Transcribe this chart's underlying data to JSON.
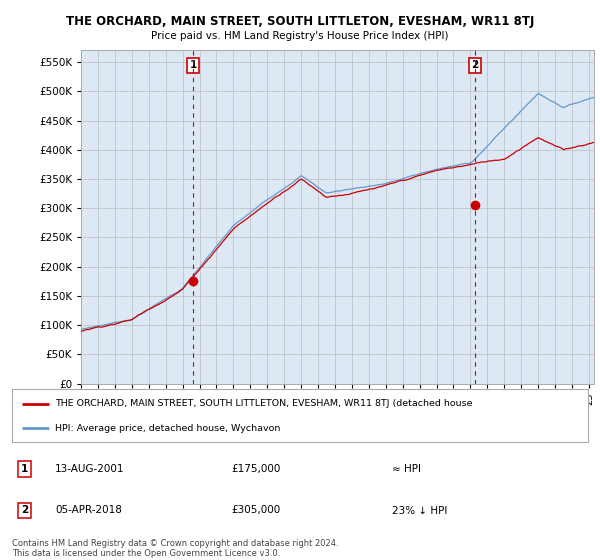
{
  "title": "THE ORCHARD, MAIN STREET, SOUTH LITTLETON, EVESHAM, WR11 8TJ",
  "subtitle": "Price paid vs. HM Land Registry's House Price Index (HPI)",
  "ylabel_ticks": [
    "£0",
    "£50K",
    "£100K",
    "£150K",
    "£200K",
    "£250K",
    "£300K",
    "£350K",
    "£400K",
    "£450K",
    "£500K",
    "£550K"
  ],
  "ytick_vals": [
    0,
    50000,
    100000,
    150000,
    200000,
    250000,
    300000,
    350000,
    400000,
    450000,
    500000,
    550000
  ],
  "ylim": [
    0,
    570000
  ],
  "xlim_start": 1995.0,
  "xlim_end": 2025.3,
  "hpi_color": "#6699CC",
  "price_color": "#CC0000",
  "plot_bg_color": "#dce9f5",
  "marker1_x": 2001.617,
  "marker1_y": 175000,
  "marker2_x": 2018.26,
  "marker2_y": 305000,
  "marker1_label": "1",
  "marker2_label": "2",
  "legend_line1": "THE ORCHARD, MAIN STREET, SOUTH LITTLETON, EVESHAM, WR11 8TJ (detached house",
  "legend_line2": "HPI: Average price, detached house, Wychavon",
  "annotation1_num": "1",
  "annotation1_date": "13-AUG-2001",
  "annotation1_price": "£175,000",
  "annotation1_hpi": "≈ HPI",
  "annotation2_num": "2",
  "annotation2_date": "05-APR-2018",
  "annotation2_price": "£305,000",
  "annotation2_hpi": "23% ↓ HPI",
  "footer": "Contains HM Land Registry data © Crown copyright and database right 2024.\nThis data is licensed under the Open Government Licence v3.0.",
  "background_color": "#ffffff",
  "grid_color": "#bbbbbb"
}
